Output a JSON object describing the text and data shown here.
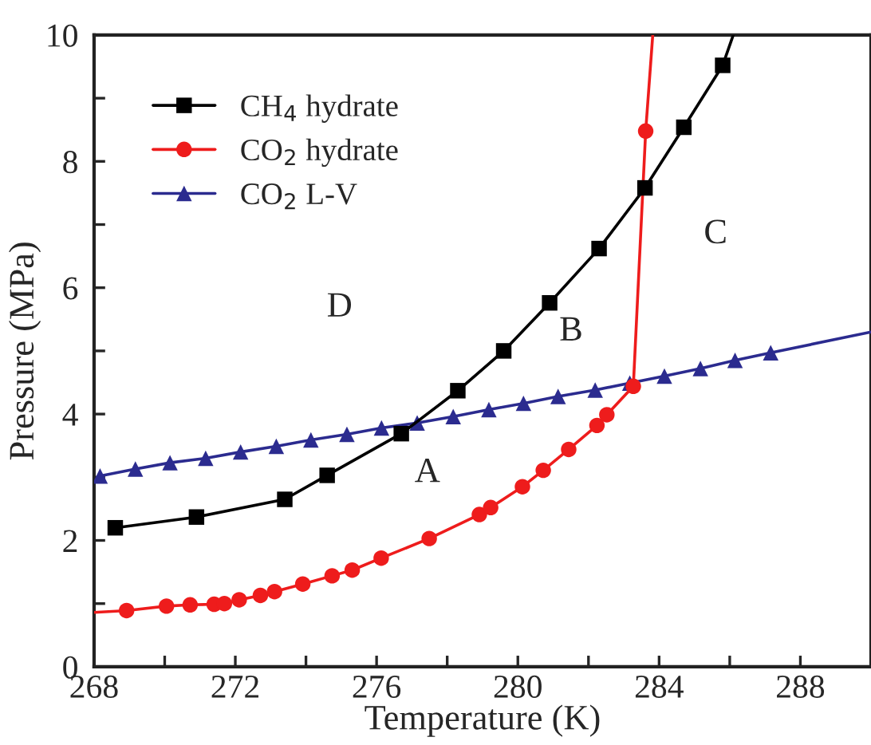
{
  "chart_data": {
    "type": "line",
    "xlabel": "Temperature (K)",
    "ylabel": "Pressure (MPa)",
    "xlim": [
      268,
      290
    ],
    "ylim": [
      0,
      10
    ],
    "xticks": [
      268,
      {
        "value": 270,
        "label": null
      },
      272,
      {
        "value": 274,
        "label": null
      },
      276,
      {
        "value": 278,
        "label": null
      },
      280,
      {
        "value": 282,
        "label": null
      },
      284,
      {
        "value": 286,
        "label": null
      },
      288
    ],
    "yticks": [
      0,
      {
        "value": 1,
        "label": null
      },
      2,
      {
        "value": 3,
        "label": null
      },
      4,
      {
        "value": 5,
        "label": null
      },
      6,
      {
        "value": 7,
        "label": null
      },
      8,
      {
        "value": 9,
        "label": null
      },
      10
    ],
    "grid": false,
    "legend": "top left",
    "series": [
      {
        "name": "CH$_{4}$ hydrate",
        "color": "#000000",
        "marker": "square",
        "x": [
          268.6,
          270.9,
          273.4,
          274.6,
          276.7,
          278.3,
          279.6,
          280.9,
          282.3,
          283.6,
          284.7,
          285.8
        ],
        "values": [
          2.2,
          2.37,
          2.65,
          3.03,
          3.69,
          4.37,
          5.0,
          5.76,
          6.62,
          7.58,
          8.54,
          9.52
        ]
      },
      {
        "name": "CO$_{2}$ hydrate",
        "color": "#ee1c1c",
        "marker": "circle",
        "x": [
          268.92,
          270.05,
          270.72,
          271.4,
          271.69,
          272.11,
          272.71,
          273.11,
          273.91,
          274.74,
          275.31,
          276.13,
          277.49,
          278.91,
          279.23,
          280.13,
          280.72,
          281.44,
          282.24,
          282.52,
          283.27,
          283.62
        ],
        "values": [
          0.89,
          0.96,
          0.98,
          0.99,
          1.0,
          1.06,
          1.13,
          1.19,
          1.31,
          1.44,
          1.53,
          1.72,
          2.03,
          2.41,
          2.52,
          2.85,
          3.11,
          3.44,
          3.82,
          3.99,
          4.44,
          8.48
        ]
      },
      {
        "name": "CO$_{2}$ L-V",
        "color": "#2b2b8f",
        "marker": "triangle",
        "x": [
          268.17,
          269.17,
          270.15,
          271.16,
          272.15,
          273.16,
          274.14,
          275.16,
          276.14,
          277.15,
          278.17,
          279.18,
          280.16,
          281.14,
          282.19,
          283.17,
          284.15,
          285.17,
          286.15,
          287.16
        ],
        "values": [
          3.02,
          3.13,
          3.23,
          3.3,
          3.4,
          3.49,
          3.59,
          3.68,
          3.78,
          3.86,
          3.96,
          4.07,
          4.17,
          4.28,
          4.38,
          4.49,
          4.6,
          4.72,
          4.85,
          4.97
        ]
      },
      {
        "color": "#000000",
        "marker": "none",
        "x": [
          285.8,
          286.1
        ],
        "values": [
          9.52,
          10
        ]
      },
      {
        "color": "#ee1c1c",
        "marker": "none",
        "x": [
          268,
          268.92
        ],
        "values": [
          0.86,
          0.89
        ]
      },
      {
        "color": "#ee1c1c",
        "marker": "none",
        "x": [
          283.62,
          283.82
        ],
        "values": [
          8.48,
          10
        ]
      },
      {
        "color": "#2b2b8f",
        "marker": "none",
        "x": [
          287.16,
          290
        ],
        "values": [
          4.97,
          5.3
        ]
      }
    ],
    "annotations": [
      "D",
      "B",
      "A",
      "C"
    ]
  }
}
